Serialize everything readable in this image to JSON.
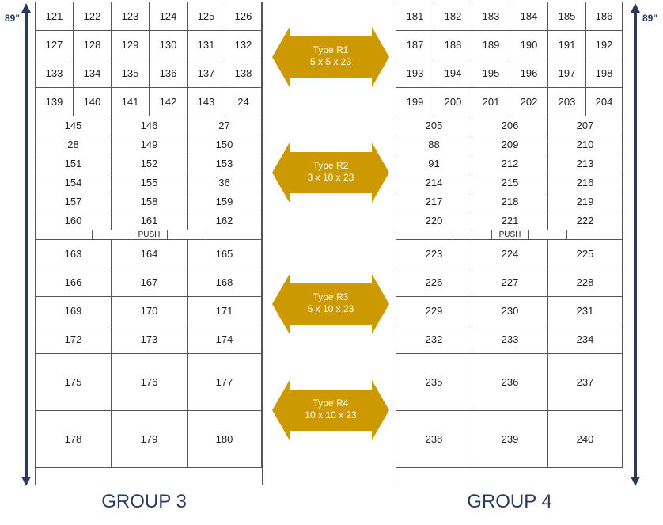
{
  "height_label": "89\"",
  "arrow_color": "#CC9900",
  "navy": "#2B3A5C",
  "types": [
    {
      "name": "Type R1",
      "dims": "5 x 5 x 23"
    },
    {
      "name": "Type R2",
      "dims": "3 x 10 x 23"
    },
    {
      "name": "Type R3",
      "dims": "5 x 10 x 23"
    },
    {
      "name": "Type R4",
      "dims": "10 x 10 x 23"
    }
  ],
  "push_label": "PUSH",
  "groups": [
    {
      "label": "GROUP 3",
      "r1": [
        [
          "121",
          "122",
          "123",
          "124",
          "125",
          "126"
        ],
        [
          "127",
          "128",
          "129",
          "130",
          "131",
          "132"
        ],
        [
          "133",
          "134",
          "135",
          "136",
          "137",
          "138"
        ],
        [
          "139",
          "140",
          "141",
          "142",
          "143",
          "24"
        ]
      ],
      "r2": [
        [
          "145",
          "146",
          "27"
        ],
        [
          "28",
          "149",
          "150"
        ],
        [
          "151",
          "152",
          "153"
        ],
        [
          "154",
          "155",
          "36"
        ],
        [
          "157",
          "158",
          "159"
        ],
        [
          "160",
          "161",
          "162"
        ]
      ],
      "r3": [
        [
          "163",
          "164",
          "165"
        ],
        [
          "166",
          "167",
          "168"
        ],
        [
          "169",
          "170",
          "171"
        ],
        [
          "172",
          "173",
          "174"
        ]
      ],
      "r4": [
        [
          "175",
          "176",
          "177"
        ],
        [
          "178",
          "179",
          "180"
        ]
      ]
    },
    {
      "label": "GROUP 4",
      "r1": [
        [
          "181",
          "182",
          "183",
          "184",
          "185",
          "186"
        ],
        [
          "187",
          "188",
          "189",
          "190",
          "191",
          "192"
        ],
        [
          "193",
          "194",
          "195",
          "196",
          "197",
          "198"
        ],
        [
          "199",
          "200",
          "201",
          "202",
          "203",
          "204"
        ]
      ],
      "r2": [
        [
          "205",
          "206",
          "207"
        ],
        [
          "88",
          "209",
          "210"
        ],
        [
          "91",
          "212",
          "213"
        ],
        [
          "214",
          "215",
          "216"
        ],
        [
          "217",
          "218",
          "219"
        ],
        [
          "220",
          "221",
          "222"
        ]
      ],
      "r3": [
        [
          "223",
          "224",
          "225"
        ],
        [
          "226",
          "227",
          "228"
        ],
        [
          "229",
          "230",
          "231"
        ],
        [
          "232",
          "233",
          "234"
        ]
      ],
      "r4": [
        [
          "235",
          "236",
          "237"
        ],
        [
          "238",
          "239",
          "240"
        ]
      ]
    }
  ]
}
